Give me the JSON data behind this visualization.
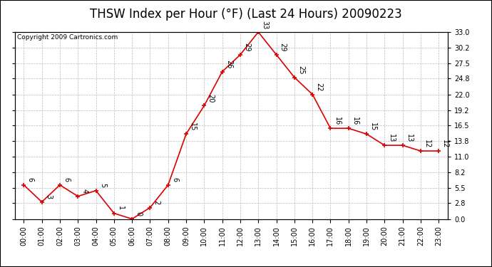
{
  "title": "THSW Index per Hour (°F) (Last 24 Hours) 20090223",
  "copyright": "Copyright 2009 Cartronics.com",
  "hours": [
    "00:00",
    "01:00",
    "02:00",
    "03:00",
    "04:00",
    "05:00",
    "06:00",
    "07:00",
    "08:00",
    "09:00",
    "10:00",
    "11:00",
    "12:00",
    "13:00",
    "14:00",
    "15:00",
    "16:00",
    "17:00",
    "18:00",
    "19:00",
    "20:00",
    "21:00",
    "22:00",
    "23:00"
  ],
  "values": [
    6,
    3,
    6,
    4,
    5,
    1,
    0,
    2,
    6,
    15,
    20,
    26,
    29,
    33,
    29,
    25,
    22,
    16,
    16,
    15,
    13,
    13,
    12,
    12
  ],
  "line_color": "#dd0000",
  "marker_color": "#dd0000",
  "background_color": "#ffffff",
  "grid_color": "#bbbbbb",
  "ylim": [
    0.0,
    33.0
  ],
  "yticks": [
    0.0,
    2.8,
    5.5,
    8.2,
    11.0,
    13.8,
    16.5,
    19.2,
    22.0,
    24.8,
    27.5,
    30.2,
    33.0
  ],
  "title_fontsize": 12,
  "label_fontsize": 7,
  "tick_fontsize": 7,
  "copyright_fontsize": 6.5
}
